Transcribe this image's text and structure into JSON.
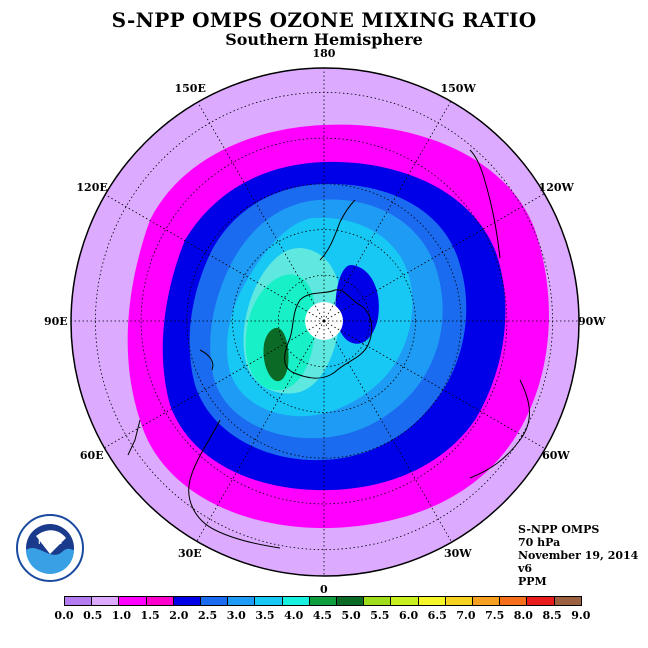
{
  "title": "S-NPP OMPS OZONE MIXING RATIO",
  "subtitle": "Southern Hemisphere",
  "longitude_labels": [
    {
      "text": "90W",
      "lon": -90
    },
    {
      "text": "60W",
      "lon": -60
    },
    {
      "text": "120W",
      "lon": -120
    },
    {
      "text": "30W",
      "lon": -30
    },
    {
      "text": "150W",
      "lon": -150
    },
    {
      "text": "0",
      "lon": 0
    },
    {
      "text": "180",
      "lon": 180
    },
    {
      "text": "30E",
      "lon": 30
    },
    {
      "text": "150E",
      "lon": 150
    },
    {
      "text": "60E",
      "lon": 60
    },
    {
      "text": "120E",
      "lon": 120
    },
    {
      "text": "90E",
      "lon": 90
    }
  ],
  "info": {
    "satellite": "S-NPP OMPS",
    "level": "70 hPa",
    "date": "November 19, 2014",
    "version": "v6",
    "units": "PPM"
  },
  "logo_text": "NOAA",
  "colorbar": {
    "ticks": [
      "0.0",
      "0.5",
      "1.0",
      "1.5",
      "2.0",
      "2.5",
      "3.0",
      "3.5",
      "4.0",
      "4.5",
      "5.0",
      "5.5",
      "6.0",
      "6.5",
      "7.0",
      "7.5",
      "8.0",
      "8.5",
      "9.0"
    ],
    "colors": [
      "#b57bf0",
      "#dcaaff",
      "#ff00ff",
      "#ff00cc",
      "#0000e8",
      "#1b6bf0",
      "#1e9bf5",
      "#17c8f5",
      "#18f0e0",
      "#0f9e3e",
      "#0a6a26",
      "#9edc1c",
      "#c8f01e",
      "#f5f52a",
      "#f5d220",
      "#f5a020",
      "#f56e1a",
      "#e81c1c",
      "#9a6040"
    ]
  },
  "map_colors": {
    "outer": "#dcaaff",
    "ring_1": "#ff00ff",
    "ring_2": "#0000e8",
    "ring_3": "#1b6bf0",
    "ring_4": "#1e9bf5",
    "ring_5": "#17c8f5",
    "ring_6": "#18f0e0",
    "peak": "#0a6a26",
    "low": "#0000e8"
  }
}
